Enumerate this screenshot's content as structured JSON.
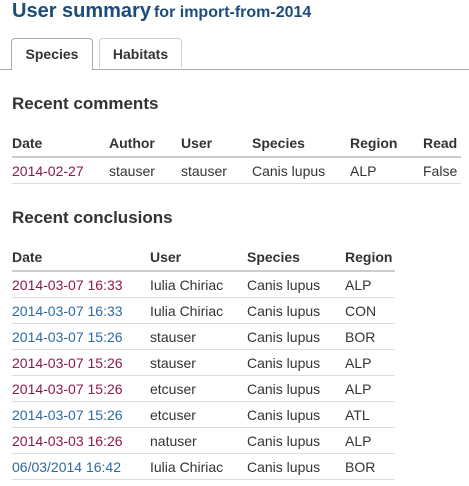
{
  "header": {
    "title": "User summary",
    "subtitle": "for import-from-2014"
  },
  "tabs": [
    {
      "label": "Species",
      "active": true
    },
    {
      "label": "Habitats",
      "active": false
    }
  ],
  "comments": {
    "heading": "Recent comments",
    "columns": [
      "Date",
      "Author",
      "User",
      "Species",
      "Region",
      "Read"
    ],
    "rows": [
      {
        "date": "2014-02-27",
        "author": "stauser",
        "user": "stauser",
        "species": "Canis lupus",
        "region": "ALP",
        "read": "False"
      }
    ]
  },
  "conclusions": {
    "heading": "Recent conclusions",
    "columns": [
      "Date",
      "User",
      "Species",
      "Region"
    ],
    "rows": [
      {
        "date": "2014-03-07 16:33",
        "user": "Iulia Chiriac",
        "species": "Canis lupus",
        "region": "ALP",
        "link_color": "#8b1a4e"
      },
      {
        "date": "2014-03-07 16:33",
        "user": "Iulia Chiriac",
        "species": "Canis lupus",
        "region": "CON",
        "link_color": "#2d6a9f"
      },
      {
        "date": "2014-03-07 15:26",
        "user": "stauser",
        "species": "Canis lupus",
        "region": "BOR",
        "link_color": "#2d6a9f"
      },
      {
        "date": "2014-03-07 15:26",
        "user": "stauser",
        "species": "Canis lupus",
        "region": "ALP",
        "link_color": "#8b1a4e"
      },
      {
        "date": "2014-03-07 15:26",
        "user": "etcuser",
        "species": "Canis lupus",
        "region": "ALP",
        "link_color": "#8b1a4e"
      },
      {
        "date": "2014-03-07 15:26",
        "user": "etcuser",
        "species": "Canis lupus",
        "region": "ATL",
        "link_color": "#2d6a9f"
      },
      {
        "date": "2014-03-03 16:26",
        "user": "natuser",
        "species": "Canis lupus",
        "region": "ALP",
        "link_color": "#8b1a4e"
      },
      {
        "date": "06/03/2014 16:42",
        "user": "Iulia Chiriac",
        "species": "Canis lupus",
        "region": "BOR",
        "link_color": "#2d6a9f"
      }
    ]
  },
  "colors": {
    "title": "#1d4c7b",
    "link_visited": "#8b1a4e",
    "link": "#2d6a9f"
  }
}
